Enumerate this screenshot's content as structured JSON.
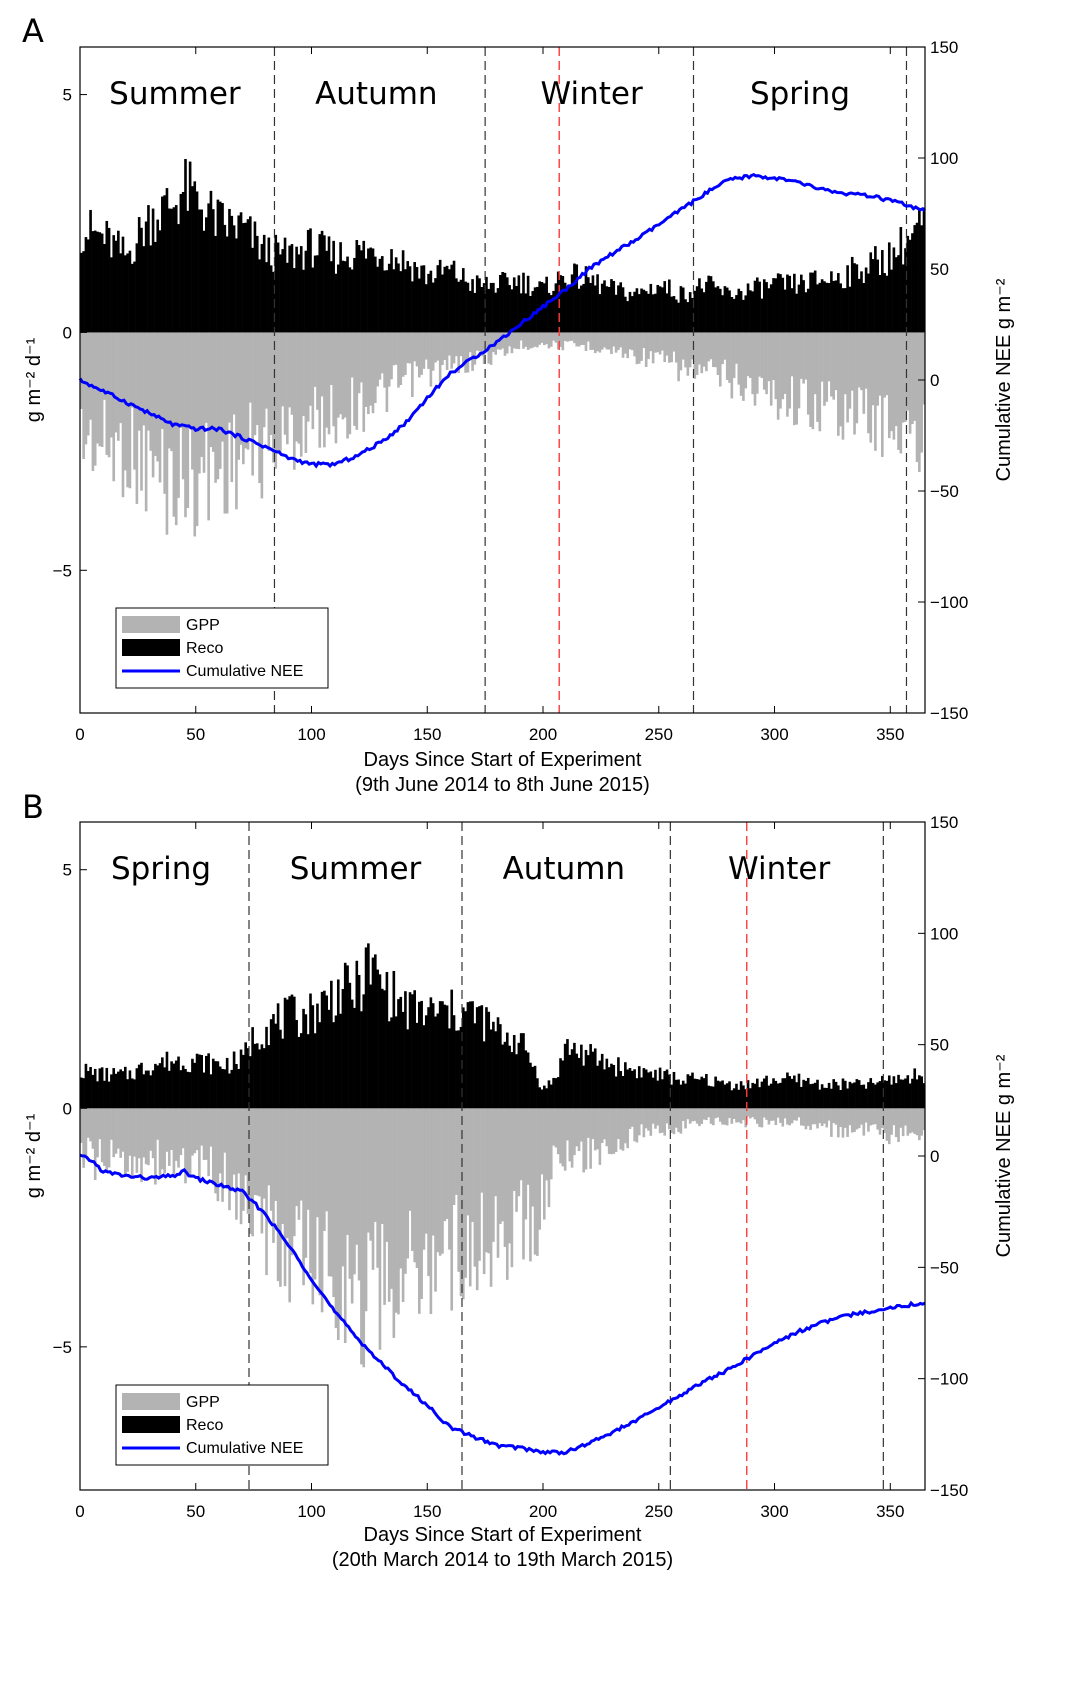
{
  "chart_data": [
    {
      "panel_label": "A",
      "type": "bar+line",
      "xlabel": "Days Since Start of Experiment",
      "xsublabel": "(9th June 2014 to 8th June 2015)",
      "ylabel_left": "g m⁻² d⁻¹",
      "ylabel_right": "Cumulative NEE   g m⁻²",
      "xlim": [
        0,
        365
      ],
      "ylim_left": [
        -8,
        6
      ],
      "ylim_right": [
        -150,
        150
      ],
      "xticks": [
        0,
        50,
        100,
        150,
        200,
        250,
        300,
        350
      ],
      "yticks_left": [
        -5,
        0,
        5
      ],
      "yticks_right": [
        -150,
        -100,
        -50,
        0,
        50,
        100,
        150
      ],
      "seasons": [
        {
          "label": "Summer",
          "x": 41
        },
        {
          "label": "Autumn",
          "x": 128
        },
        {
          "label": "Winter",
          "x": 221
        },
        {
          "label": "Spring",
          "x": 311
        }
      ],
      "season_boundaries": [
        84,
        175,
        265,
        357
      ],
      "highlight_line": 207,
      "legend": [
        {
          "label": "GPP",
          "color": "#b3b3b3",
          "kind": "bar"
        },
        {
          "label": "Reco",
          "color": "#000000",
          "kind": "bar"
        },
        {
          "label": "Cumulative NEE",
          "color": "#0000ff",
          "kind": "line"
        }
      ],
      "reco_profile": [
        [
          0,
          2.2
        ],
        [
          10,
          2.0
        ],
        [
          20,
          1.6
        ],
        [
          30,
          2.4
        ],
        [
          40,
          2.7
        ],
        [
          45,
          3.0
        ],
        [
          50,
          2.8
        ],
        [
          60,
          2.3
        ],
        [
          70,
          2.2
        ],
        [
          80,
          1.7
        ],
        [
          90,
          1.6
        ],
        [
          100,
          1.8
        ],
        [
          110,
          1.6
        ],
        [
          120,
          1.7
        ],
        [
          130,
          1.7
        ],
        [
          140,
          1.5
        ],
        [
          150,
          1.2
        ],
        [
          160,
          1.3
        ],
        [
          170,
          1.0
        ],
        [
          180,
          1.0
        ],
        [
          190,
          1.1
        ],
        [
          200,
          0.9
        ],
        [
          210,
          1.2
        ],
        [
          220,
          1.1
        ],
        [
          230,
          0.9
        ],
        [
          240,
          0.8
        ],
        [
          250,
          1.0
        ],
        [
          260,
          0.8
        ],
        [
          270,
          1.0
        ],
        [
          280,
          0.8
        ],
        [
          290,
          0.9
        ],
        [
          300,
          1.0
        ],
        [
          310,
          1.0
        ],
        [
          320,
          1.1
        ],
        [
          330,
          1.2
        ],
        [
          340,
          1.4
        ],
        [
          350,
          1.6
        ],
        [
          365,
          2.3
        ]
      ],
      "gpp_profile": [
        [
          0,
          -2.3
        ],
        [
          10,
          -2.5
        ],
        [
          20,
          -2.6
        ],
        [
          30,
          -3.0
        ],
        [
          40,
          -3.3
        ],
        [
          50,
          -3.2
        ],
        [
          60,
          -3.0
        ],
        [
          70,
          -2.7
        ],
        [
          80,
          -2.6
        ],
        [
          90,
          -2.3
        ],
        [
          100,
          -2.0
        ],
        [
          110,
          -1.8
        ],
        [
          120,
          -1.6
        ],
        [
          130,
          -1.4
        ],
        [
          140,
          -1.1
        ],
        [
          150,
          -0.9
        ],
        [
          160,
          -0.8
        ],
        [
          170,
          -0.6
        ],
        [
          180,
          -0.5
        ],
        [
          190,
          -0.3
        ],
        [
          200,
          -0.25
        ],
        [
          210,
          -0.3
        ],
        [
          220,
          -0.3
        ],
        [
          230,
          -0.4
        ],
        [
          240,
          -0.5
        ],
        [
          250,
          -0.6
        ],
        [
          260,
          -0.8
        ],
        [
          270,
          -0.9
        ],
        [
          280,
          -1.0
        ],
        [
          290,
          -1.2
        ],
        [
          300,
          -1.4
        ],
        [
          310,
          -1.5
        ],
        [
          320,
          -1.6
        ],
        [
          330,
          -1.7
        ],
        [
          340,
          -1.9
        ],
        [
          350,
          -2.0
        ],
        [
          365,
          -2.6
        ]
      ],
      "nee_cumulative": [
        [
          0,
          0
        ],
        [
          10,
          -5
        ],
        [
          20,
          -10
        ],
        [
          30,
          -15
        ],
        [
          40,
          -20
        ],
        [
          50,
          -22
        ],
        [
          60,
          -22
        ],
        [
          70,
          -26
        ],
        [
          80,
          -30
        ],
        [
          90,
          -35
        ],
        [
          100,
          -38
        ],
        [
          110,
          -38
        ],
        [
          120,
          -34
        ],
        [
          130,
          -28
        ],
        [
          140,
          -20
        ],
        [
          150,
          -8
        ],
        [
          160,
          3
        ],
        [
          170,
          10
        ],
        [
          180,
          17
        ],
        [
          190,
          25
        ],
        [
          200,
          33
        ],
        [
          210,
          41
        ],
        [
          220,
          50
        ],
        [
          230,
          57
        ],
        [
          240,
          63
        ],
        [
          250,
          70
        ],
        [
          260,
          77
        ],
        [
          270,
          84
        ],
        [
          280,
          90
        ],
        [
          290,
          92
        ],
        [
          300,
          91
        ],
        [
          310,
          89
        ],
        [
          320,
          86
        ],
        [
          330,
          84
        ],
        [
          340,
          83
        ],
        [
          350,
          81
        ],
        [
          365,
          76
        ]
      ]
    },
    {
      "panel_label": "B",
      "type": "bar+line",
      "xlabel": "Days Since Start of Experiment",
      "xsublabel": "(20th March 2014 to 19th March 2015)",
      "ylabel_left": "g m⁻² d⁻¹",
      "ylabel_right": "Cumulative NEE   g m⁻²",
      "xlim": [
        0,
        365
      ],
      "ylim_left": [
        -8,
        6
      ],
      "ylim_right": [
        -150,
        150
      ],
      "xticks": [
        0,
        50,
        100,
        150,
        200,
        250,
        300,
        350
      ],
      "yticks_left": [
        -5,
        0,
        5
      ],
      "yticks_right": [
        -150,
        -100,
        -50,
        0,
        50,
        100,
        150
      ],
      "seasons": [
        {
          "label": "Spring",
          "x": 35
        },
        {
          "label": "Summer",
          "x": 119
        },
        {
          "label": "Autumn",
          "x": 209
        },
        {
          "label": "Winter",
          "x": 302
        }
      ],
      "season_boundaries": [
        73,
        165,
        255,
        347
      ],
      "highlight_line": 288,
      "legend": [
        {
          "label": "GPP",
          "color": "#b3b3b3",
          "kind": "bar"
        },
        {
          "label": "Reco",
          "color": "#000000",
          "kind": "bar"
        },
        {
          "label": "Cumulative NEE",
          "color": "#0000ff",
          "kind": "line"
        }
      ],
      "reco_profile": [
        [
          0,
          0.8
        ],
        [
          10,
          0.7
        ],
        [
          20,
          0.7
        ],
        [
          30,
          0.9
        ],
        [
          40,
          1.0
        ],
        [
          50,
          1.0
        ],
        [
          60,
          0.9
        ],
        [
          70,
          1.0
        ],
        [
          75,
          1.5
        ],
        [
          80,
          1.7
        ],
        [
          90,
          1.9
        ],
        [
          100,
          2.0
        ],
        [
          110,
          2.4
        ],
        [
          120,
          2.5
        ],
        [
          125,
          3.0
        ],
        [
          130,
          2.6
        ],
        [
          140,
          2.1
        ],
        [
          150,
          2.0
        ],
        [
          160,
          2.0
        ],
        [
          170,
          2.0
        ],
        [
          180,
          1.6
        ],
        [
          190,
          1.4
        ],
        [
          195,
          1.0
        ],
        [
          200,
          0.4
        ],
        [
          205,
          0.6
        ],
        [
          210,
          1.3
        ],
        [
          220,
          1.1
        ],
        [
          230,
          0.9
        ],
        [
          240,
          0.8
        ],
        [
          250,
          0.7
        ],
        [
          260,
          0.6
        ],
        [
          270,
          0.6
        ],
        [
          280,
          0.5
        ],
        [
          290,
          0.5
        ],
        [
          300,
          0.6
        ],
        [
          310,
          0.6
        ],
        [
          320,
          0.5
        ],
        [
          330,
          0.5
        ],
        [
          340,
          0.5
        ],
        [
          350,
          0.6
        ],
        [
          365,
          0.7
        ]
      ],
      "gpp_profile": [
        [
          0,
          -1.0
        ],
        [
          10,
          -1.2
        ],
        [
          20,
          -1.1
        ],
        [
          30,
          -1.2
        ],
        [
          40,
          -1.2
        ],
        [
          50,
          -1.3
        ],
        [
          60,
          -1.5
        ],
        [
          70,
          -2.0
        ],
        [
          80,
          -2.8
        ],
        [
          90,
          -3.2
        ],
        [
          100,
          -3.4
        ],
        [
          110,
          -3.6
        ],
        [
          120,
          -4.2
        ],
        [
          130,
          -4.0
        ],
        [
          140,
          -3.7
        ],
        [
          150,
          -3.4
        ],
        [
          160,
          -3.2
        ],
        [
          170,
          -3.0
        ],
        [
          180,
          -2.8
        ],
        [
          190,
          -2.6
        ],
        [
          200,
          -2.2
        ],
        [
          205,
          -1.0
        ],
        [
          210,
          -1.2
        ],
        [
          220,
          -1.0
        ],
        [
          230,
          -0.8
        ],
        [
          240,
          -0.6
        ],
        [
          250,
          -0.5
        ],
        [
          260,
          -0.4
        ],
        [
          270,
          -0.3
        ],
        [
          280,
          -0.3
        ],
        [
          290,
          -0.3
        ],
        [
          300,
          -0.3
        ],
        [
          310,
          -0.3
        ],
        [
          320,
          -0.4
        ],
        [
          330,
          -0.5
        ],
        [
          340,
          -0.5
        ],
        [
          350,
          -0.6
        ],
        [
          365,
          -0.7
        ]
      ],
      "nee_cumulative": [
        [
          0,
          0
        ],
        [
          5,
          -2
        ],
        [
          10,
          -7
        ],
        [
          20,
          -9
        ],
        [
          30,
          -10
        ],
        [
          40,
          -9
        ],
        [
          45,
          -7
        ],
        [
          50,
          -10
        ],
        [
          60,
          -13
        ],
        [
          70,
          -16
        ],
        [
          80,
          -26
        ],
        [
          90,
          -40
        ],
        [
          100,
          -55
        ],
        [
          110,
          -70
        ],
        [
          120,
          -82
        ],
        [
          130,
          -93
        ],
        [
          140,
          -103
        ],
        [
          150,
          -112
        ],
        [
          160,
          -122
        ],
        [
          170,
          -126
        ],
        [
          180,
          -130
        ],
        [
          190,
          -131
        ],
        [
          200,
          -133
        ],
        [
          210,
          -133
        ],
        [
          220,
          -129
        ],
        [
          230,
          -124
        ],
        [
          240,
          -119
        ],
        [
          250,
          -113
        ],
        [
          260,
          -107
        ],
        [
          270,
          -101
        ],
        [
          280,
          -96
        ],
        [
          290,
          -90
        ],
        [
          300,
          -84
        ],
        [
          310,
          -79
        ],
        [
          320,
          -75
        ],
        [
          330,
          -72
        ],
        [
          340,
          -70
        ],
        [
          350,
          -68
        ],
        [
          365,
          -66
        ]
      ]
    }
  ]
}
